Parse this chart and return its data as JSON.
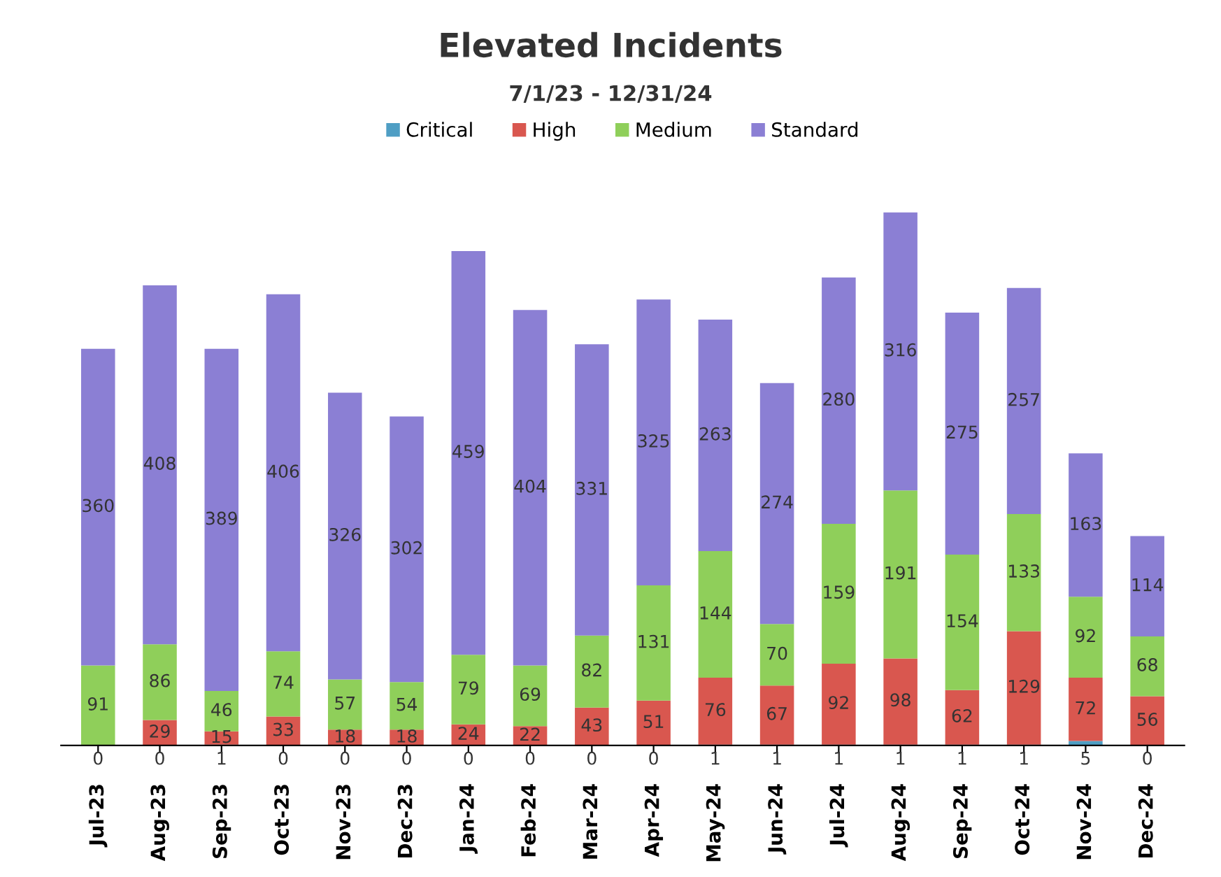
{
  "chart_data": {
    "type": "bar",
    "title": "Elevated Incidents",
    "subtitle": "7/1/23 - 12/31/24",
    "categories": [
      "Jul-23",
      "Aug-23",
      "Sep-23",
      "Oct-23",
      "Nov-23",
      "Dec-23",
      "Jan-24",
      "Feb-24",
      "Mar-24",
      "Apr-24",
      "May-24",
      "Jun-24",
      "Jul-24",
      "Aug-24",
      "Sep-24",
      "Oct-24",
      "Nov-24",
      "Dec-24"
    ],
    "stacked": true,
    "legend": "top",
    "tick_labels": "x",
    "grid": false,
    "series": [
      {
        "name": "Critical",
        "color": "#4f9ec4",
        "values": [
          0,
          0,
          1,
          0,
          0,
          0,
          0,
          0,
          0,
          0,
          1,
          1,
          1,
          1,
          1,
          1,
          5,
          0
        ],
        "value_labels": [
          "0",
          "0",
          "1",
          "0",
          "0",
          "0",
          "0",
          "0",
          "0",
          "0",
          "1",
          "1",
          "1",
          "1",
          "1",
          "1",
          "5",
          "0"
        ]
      },
      {
        "name": "High",
        "color": "#d9574f",
        "values": [
          0,
          29,
          15,
          33,
          18,
          18,
          24,
          22,
          43,
          51,
          76,
          67,
          92,
          98,
          62,
          129,
          72,
          56
        ],
        "value_labels": [
          null,
          "29",
          "15",
          "33",
          "18",
          "18",
          "24",
          "22",
          "43",
          "51",
          "76",
          "67",
          "92",
          "98",
          "62",
          "129",
          "72",
          "56"
        ]
      },
      {
        "name": "Medium",
        "color": "#8fcf5a",
        "values": [
          91,
          86,
          46,
          74,
          57,
          54,
          79,
          69,
          82,
          131,
          144,
          70,
          159,
          191,
          154,
          133,
          92,
          68
        ],
        "value_labels": [
          "91",
          "86",
          "46",
          "74",
          "57",
          "54",
          "79",
          "69",
          "82",
          "131",
          "144",
          "70",
          "159",
          "191",
          "154",
          "133",
          "92",
          "68"
        ]
      },
      {
        "name": "Standard",
        "color": "#8b7fd4",
        "values": [
          360,
          408,
          389,
          406,
          326,
          302,
          459,
          404,
          331,
          325,
          263,
          274,
          280,
          316,
          275,
          257,
          163,
          114
        ],
        "value_labels": [
          "360",
          "408",
          "389",
          "406",
          "326",
          "302",
          "459",
          "404",
          "331",
          "325",
          "263",
          "274",
          "280",
          "316",
          "275",
          "257",
          "163",
          "114"
        ]
      }
    ]
  }
}
